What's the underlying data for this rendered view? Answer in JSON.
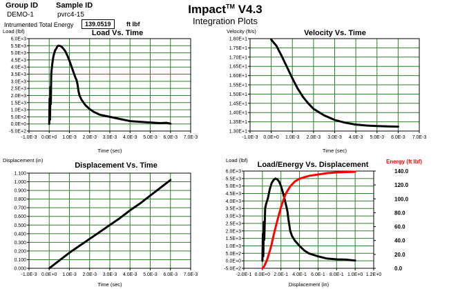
{
  "header": {
    "group_id_label": "Group ID",
    "group_id_value": "DEMO-1",
    "sample_id_label": "Sample ID",
    "sample_id_value": "pvrc4-15",
    "energy_label": "Intrumented Total Energy",
    "energy_value": "139.0519",
    "energy_unit": "ft lbf",
    "app_title": "Impact",
    "app_title_tm": "TM",
    "app_version": " V4.3",
    "subtitle": "Integration Plots"
  },
  "chart_data": [
    {
      "type": "line",
      "title": "Load Vs. Time",
      "ylabel": "Load (lbf)",
      "xlabel": "Time (sec)",
      "xlim": [
        -0.001,
        0.007
      ],
      "ylim": [
        -500,
        6000
      ],
      "x_ticks": [
        "-1.0E-3",
        "0.0E+0",
        "1.0E-3",
        "2.0E-3",
        "3.0E-3",
        "4.0E-3",
        "5.0E-3",
        "6.0E-3",
        "7.0E-3"
      ],
      "y_ticks": [
        "-5.0E+2",
        "0.0E+0",
        "5.0E+2",
        "1.0E+3",
        "1.5E+3",
        "2.0E+3",
        "2.5E+3",
        "3.0E+3",
        "3.5E+3",
        "4.0E+3",
        "4.5E+3",
        "5.0E+3",
        "5.5E+3",
        "6.0E+3"
      ],
      "grid": true,
      "line_color": "#000000",
      "series": [
        {
          "x": [
            0.0,
            2e-05,
            4e-05,
            6e-05,
            8e-05,
            0.0001,
            0.00012,
            0.00015,
            0.0002,
            0.00025,
            0.0003,
            0.00035,
            0.0004,
            0.00045,
            0.0005,
            0.0006,
            0.0007,
            0.0008,
            0.0009,
            0.001,
            0.0011,
            0.0012,
            0.0013,
            0.00135,
            0.0014,
            0.00145,
            0.0015,
            0.0016,
            0.0017,
            0.0018,
            0.002,
            0.0022,
            0.0025,
            0.003,
            0.0035,
            0.004,
            0.0045,
            0.005,
            0.0055,
            0.0058,
            0.006
          ],
          "y": [
            0,
            1800,
            300,
            2600,
            1400,
            3500,
            3800,
            4200,
            4700,
            5000,
            5200,
            5300,
            5450,
            5500,
            5500,
            5450,
            5300,
            5100,
            4800,
            4450,
            4050,
            3650,
            3250,
            3100,
            2800,
            2300,
            2000,
            1700,
            1500,
            1300,
            1050,
            850,
            650,
            500,
            350,
            200,
            150,
            100,
            60,
            80,
            20
          ]
        }
      ]
    },
    {
      "type": "line",
      "title": "Velocity Vs. Time",
      "ylabel": "Velocity (ft/s)",
      "xlabel": "Time (sec)",
      "xlim": [
        -0.001,
        0.007
      ],
      "ylim": [
        13.0,
        18.0
      ],
      "x_ticks": [
        "-1.0E-3",
        "0.0E+0",
        "1.0E-3",
        "2.0E-3",
        "3.0E-3",
        "4.0E-3",
        "5.0E-3",
        "6.0E-3",
        "7.0E-3"
      ],
      "y_ticks": [
        "1.30E+1",
        "1.35E+1",
        "1.40E+1",
        "1.45E+1",
        "1.50E+1",
        "1.55E+1",
        "1.60E+1",
        "1.65E+1",
        "1.70E+1",
        "1.75E+1",
        "1.80E+1"
      ],
      "grid": true,
      "line_color": "#000000",
      "series": [
        {
          "x": [
            0.0,
            0.00025,
            0.0005,
            0.00075,
            0.001,
            0.00125,
            0.0015,
            0.00175,
            0.002,
            0.0025,
            0.003,
            0.0035,
            0.004,
            0.0045,
            0.005,
            0.0055,
            0.006
          ],
          "y": [
            17.95,
            17.6,
            17.05,
            16.45,
            15.85,
            15.3,
            14.85,
            14.5,
            14.2,
            13.85,
            13.6,
            13.45,
            13.35,
            13.3,
            13.27,
            13.25,
            13.24
          ]
        }
      ]
    },
    {
      "type": "line",
      "title": "Displacement Vs. Time",
      "ylabel": "Displacement (in)",
      "xlabel": "Time (sec)",
      "xlim": [
        -0.001,
        0.007
      ],
      "ylim": [
        0.0,
        1.1
      ],
      "x_ticks": [
        "-1.0E-3",
        "0.0E+0",
        "1.0E-3",
        "2.0E-3",
        "3.0E-3",
        "4.0E-3",
        "5.0E-3",
        "6.0E-3",
        "7.0E-3"
      ],
      "y_ticks": [
        "0.000",
        "0.100",
        "0.200",
        "0.300",
        "0.400",
        "0.500",
        "0.600",
        "0.700",
        "0.800",
        "0.900",
        "1.000",
        "1.100"
      ],
      "grid": true,
      "line_color": "#000000",
      "series": [
        {
          "x": [
            0.0,
            0.0005,
            0.001,
            0.0015,
            0.002,
            0.0025,
            0.003,
            0.0035,
            0.004,
            0.0045,
            0.005,
            0.0055,
            0.006
          ],
          "y": [
            0.0,
            0.09,
            0.18,
            0.26,
            0.34,
            0.42,
            0.5,
            0.58,
            0.67,
            0.75,
            0.84,
            0.93,
            1.02
          ]
        }
      ]
    },
    {
      "type": "line",
      "title": "Load/Energy  Vs. Displacement",
      "ylabel": "Load (lbf)",
      "y2label": "Energy (ft lbf)",
      "xlabel": "Displacement (in)",
      "xlim": [
        -0.2,
        1.2
      ],
      "ylim": [
        -500,
        6000
      ],
      "y2lim": [
        0,
        140
      ],
      "x_ticks": [
        "-2.0E-1",
        "0.0E+0",
        "2.0E-1",
        "4.0E-1",
        "6.0E-1",
        "8.0E-1",
        "1.0E+0",
        "1.2E+0"
      ],
      "y_ticks": [
        "-5.0E+2",
        "0.0E+0",
        "5.0E+2",
        "1.0E+3",
        "1.5E+3",
        "2.0E+3",
        "2.5E+3",
        "3.0E+3",
        "3.5E+3",
        "4.0E+3",
        "4.5E+3",
        "5.0E+3",
        "5.5E+3",
        "6.0E+3"
      ],
      "y2_ticks": [
        "0.0",
        "20.0",
        "40.0",
        "60.0",
        "80.0",
        "100.0",
        "120.0",
        "140.0"
      ],
      "grid": true,
      "load_color": "#000000",
      "energy_color": "#ff0000",
      "series": [
        {
          "name": "Load",
          "x": [
            0.0,
            0.005,
            0.01,
            0.015,
            0.02,
            0.03,
            0.04,
            0.06,
            0.08,
            0.1,
            0.12,
            0.14,
            0.16,
            0.18,
            0.2,
            0.22,
            0.24,
            0.26,
            0.27,
            0.28,
            0.3,
            0.32,
            0.35,
            0.4,
            0.45,
            0.5,
            0.6,
            0.7,
            0.8,
            0.9,
            1.0
          ],
          "y": [
            0,
            1800,
            300,
            2600,
            1400,
            3500,
            3800,
            4200,
            4800,
            5200,
            5400,
            5500,
            5450,
            5300,
            5000,
            4600,
            4100,
            3600,
            3300,
            2800,
            2000,
            1650,
            1350,
            1000,
            700,
            500,
            300,
            150,
            100,
            80,
            20
          ]
        },
        {
          "name": "Energy",
          "x": [
            0.0,
            0.02,
            0.05,
            0.08,
            0.1,
            0.12,
            0.15,
            0.2,
            0.25,
            0.3,
            0.35,
            0.4,
            0.5,
            0.6,
            0.7,
            0.8,
            0.9,
            1.0
          ],
          "y": [
            0,
            3,
            12,
            25,
            35,
            47,
            63,
            88,
            107,
            118,
            125,
            129,
            133,
            135,
            137,
            138,
            138.5,
            139
          ]
        }
      ]
    }
  ]
}
